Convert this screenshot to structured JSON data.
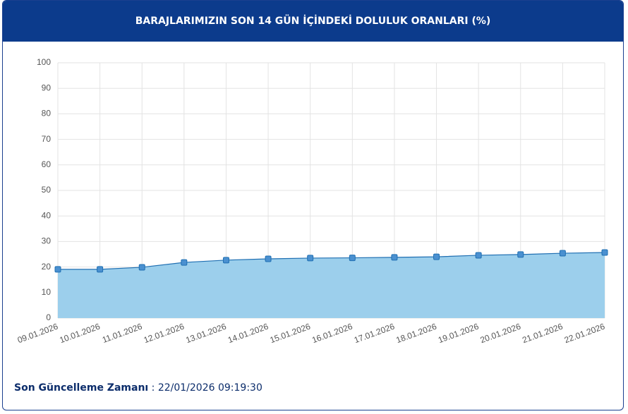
{
  "chart_data": {
    "type": "area",
    "title": "BARAJLARIMIZIN SON 14 GÜN İÇİNDEKİ DOLULUK ORANLARI (%)",
    "categories": [
      "09.01.2026",
      "10.01.2026",
      "11.01.2026",
      "12.01.2026",
      "13.01.2026",
      "14.01.2026",
      "15.01.2026",
      "16.01.2026",
      "17.01.2026",
      "18.01.2026",
      "19.01.2026",
      "20.01.2026",
      "21.01.2026",
      "22.01.2026"
    ],
    "series": [
      {
        "color": "#1f6fb2",
        "fill": "#9ccfec",
        "values": [
          19.1,
          19.1,
          19.9,
          21.8,
          22.7,
          23.2,
          23.5,
          23.6,
          23.8,
          24.0,
          24.6,
          24.9,
          25.4,
          25.7
        ]
      }
    ],
    "ylim": [
      0,
      100
    ],
    "yticks": [
      0,
      10,
      20,
      30,
      40,
      50,
      60,
      70,
      80,
      90,
      100
    ],
    "grid": true
  },
  "footer": {
    "label": "Son Güncelleme Zamanı",
    "value": ": 22/01/2026 09:19:30"
  }
}
